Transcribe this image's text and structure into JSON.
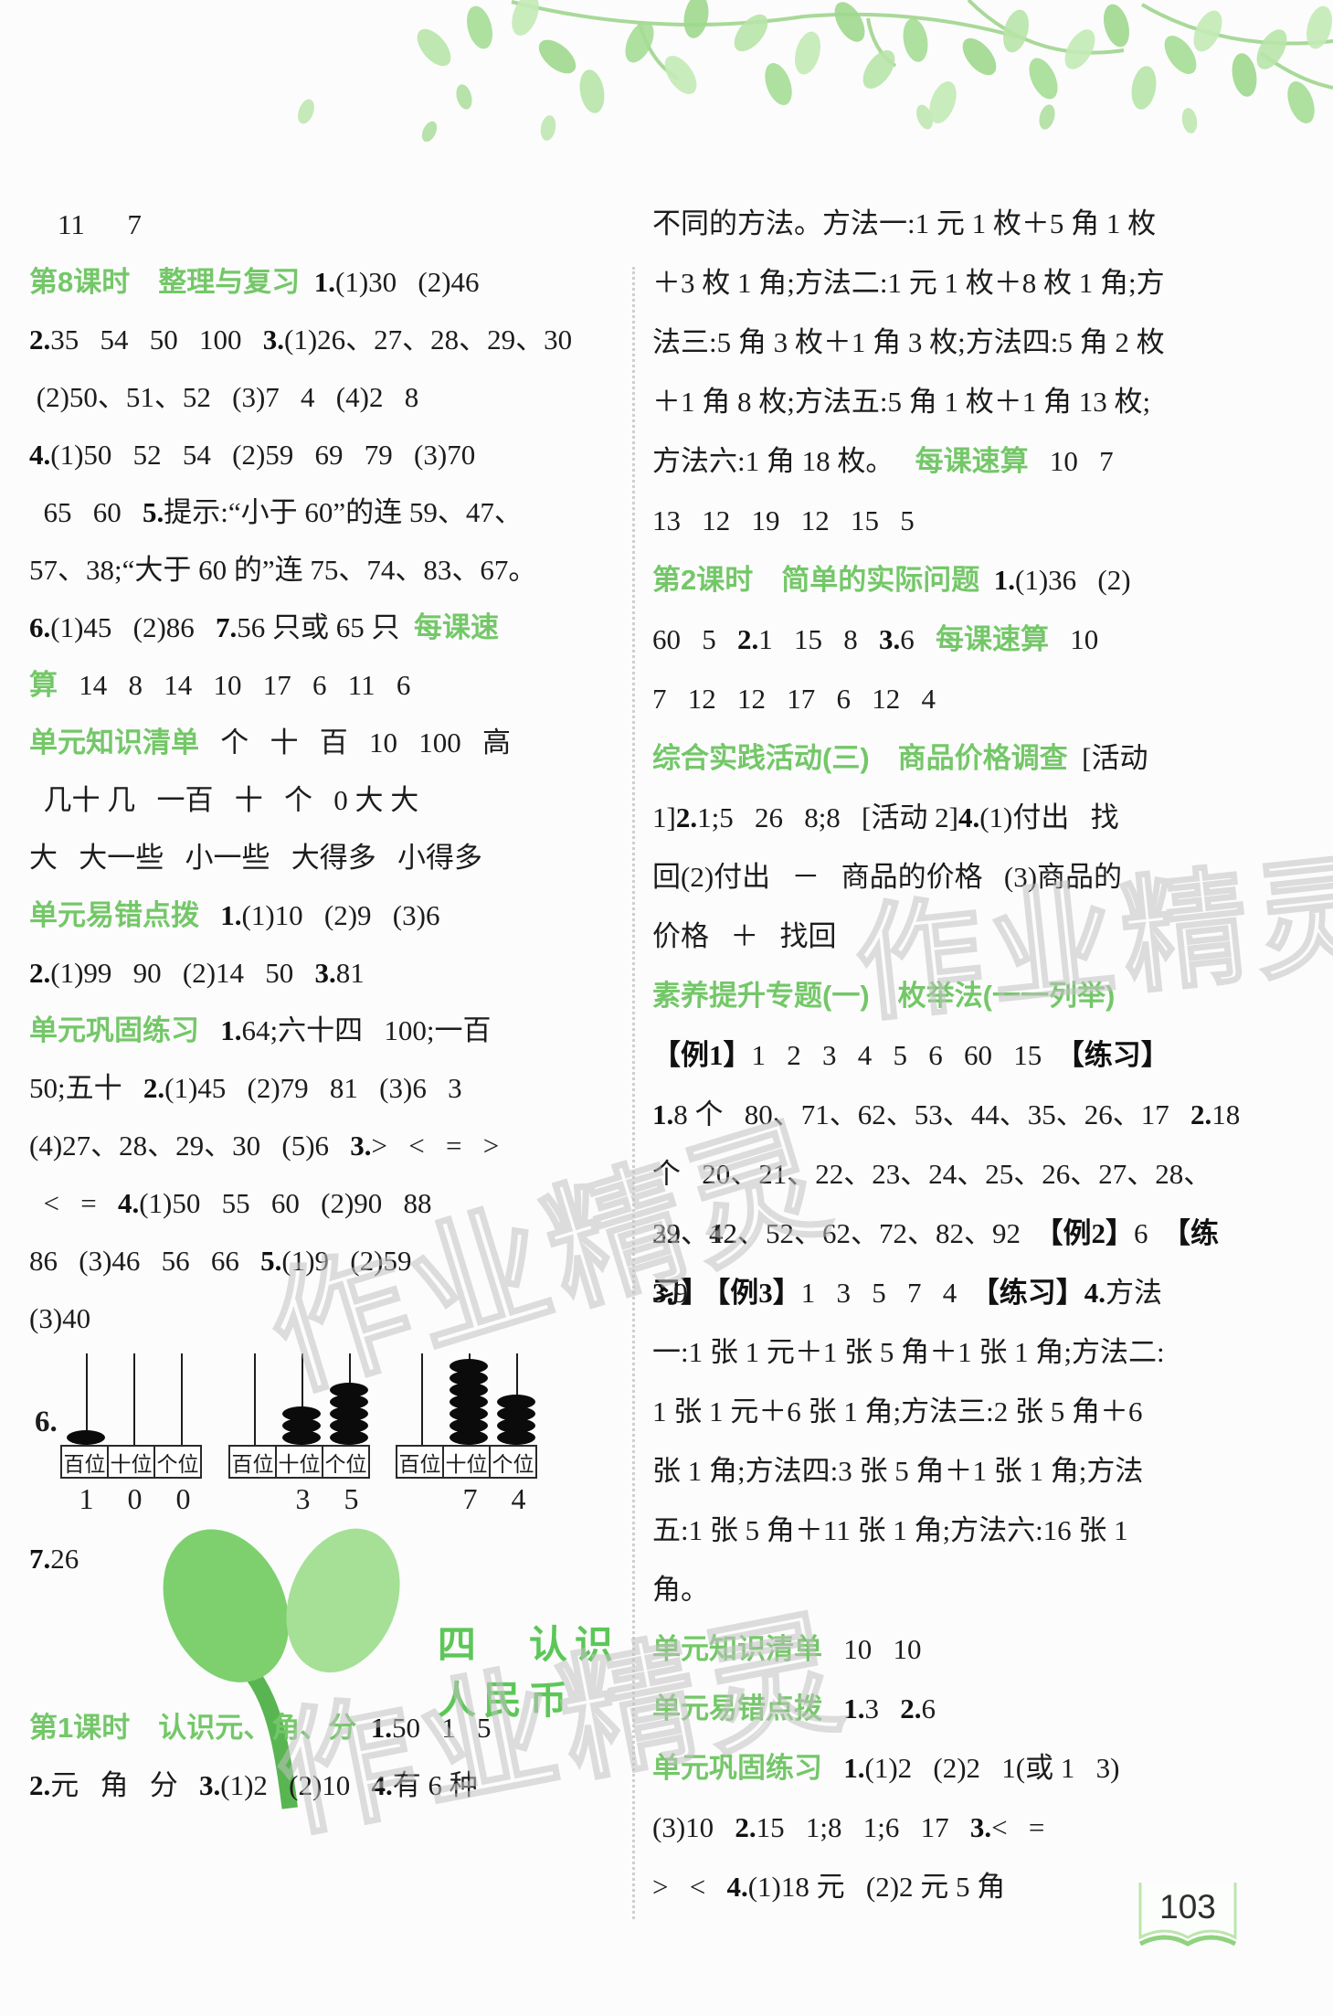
{
  "page": {
    "number": "103",
    "watermark": "作业精灵"
  },
  "left_column": {
    "lines": [
      [
        {
          "s": "n",
          "t": "    11      7"
        }
      ],
      [
        {
          "s": "g",
          "t": "第8课时　整理与复习"
        },
        {
          "s": "n",
          "t": "  "
        },
        {
          "s": "b",
          "t": "1."
        },
        {
          "s": "n",
          "t": "(1)30   (2)46"
        }
      ],
      [
        {
          "s": "b",
          "t": "2."
        },
        {
          "s": "n",
          "t": "35   54   50   100   "
        },
        {
          "s": "b",
          "t": "3."
        },
        {
          "s": "n",
          "t": "(1)26、27、28、29、30"
        }
      ],
      [
        {
          "s": "n",
          "t": " (2)50、51、52   (3)7   4   (4)2   8"
        }
      ],
      [
        {
          "s": "b",
          "t": "4."
        },
        {
          "s": "n",
          "t": "(1)50   52   54   (2)59   69   79   (3)70"
        }
      ],
      [
        {
          "s": "n",
          "t": "  65   60   "
        },
        {
          "s": "b",
          "t": "5."
        },
        {
          "s": "n",
          "t": "提示:“小于 60”的连 59、47、"
        }
      ],
      [
        {
          "s": "n",
          "t": "57、38;“大于 60 的”连 75、74、83、67。"
        }
      ],
      [
        {
          "s": "b",
          "t": "6."
        },
        {
          "s": "n",
          "t": "(1)45   (2)86   "
        },
        {
          "s": "b",
          "t": "7."
        },
        {
          "s": "n",
          "t": "56 只或 65 只  "
        },
        {
          "s": "g",
          "t": "每课速"
        }
      ],
      [
        {
          "s": "g",
          "t": "算"
        },
        {
          "s": "n",
          "t": "   14   8   14   10   17   6   11   6"
        }
      ],
      [
        {
          "s": "g",
          "t": "单元知识清单"
        },
        {
          "s": "n",
          "t": "   个   十   百   10   100   高"
        }
      ],
      [
        {
          "s": "n",
          "t": "  几十 几   一百   十   个   0 大 大"
        }
      ],
      [
        {
          "s": "n",
          "t": "大   大一些   小一些   大得多   小得多"
        }
      ],
      [
        {
          "s": "g",
          "t": "单元易错点拨"
        },
        {
          "s": "n",
          "t": "   "
        },
        {
          "s": "b",
          "t": "1."
        },
        {
          "s": "n",
          "t": "(1)10   (2)9   (3)6"
        }
      ],
      [
        {
          "s": "b",
          "t": "2."
        },
        {
          "s": "n",
          "t": "(1)99   90   (2)14   50   "
        },
        {
          "s": "b",
          "t": "3."
        },
        {
          "s": "n",
          "t": "81"
        }
      ],
      [
        {
          "s": "g",
          "t": "单元巩固练习"
        },
        {
          "s": "n",
          "t": "   "
        },
        {
          "s": "b",
          "t": "1."
        },
        {
          "s": "n",
          "t": "64;六十四   100;一百"
        }
      ],
      [
        {
          "s": "n",
          "t": "50;五十   "
        },
        {
          "s": "b",
          "t": "2."
        },
        {
          "s": "n",
          "t": "(1)45   (2)79   81   (3)6   3"
        }
      ],
      [
        {
          "s": "n",
          "t": "(4)27、28、29、30   (5)6   "
        },
        {
          "s": "b",
          "t": "3."
        },
        {
          "s": "n",
          "t": ">   <   =   >"
        }
      ],
      [
        {
          "s": "n",
          "t": "  <   =   "
        },
        {
          "s": "b",
          "t": "4."
        },
        {
          "s": "n",
          "t": "(1)50   55   60   (2)90   88"
        }
      ],
      [
        {
          "s": "n",
          "t": "86   (3)46   56   66   "
        },
        {
          "s": "b",
          "t": "5."
        },
        {
          "s": "n",
          "t": "(1)9   (2)59"
        }
      ],
      [
        {
          "s": "n",
          "t": "(3)40"
        }
      ]
    ],
    "lines_after_abacus": [
      [
        {
          "s": "b",
          "t": "7."
        },
        {
          "s": "n",
          "t": "26"
        }
      ]
    ],
    "unit_title": "四　认识人民币",
    "lines_bottom": [
      [
        {
          "s": "g",
          "t": "第1课时　认识元、角、分"
        },
        {
          "s": "n",
          "t": "  "
        },
        {
          "s": "b",
          "t": "1."
        },
        {
          "s": "n",
          "t": "50   1   5"
        }
      ],
      [
        {
          "s": "b",
          "t": "2."
        },
        {
          "s": "n",
          "t": "元   角   分   "
        },
        {
          "s": "b",
          "t": "3."
        },
        {
          "s": "n",
          "t": "(1)2   (2)10   "
        },
        {
          "s": "b",
          "t": "4."
        },
        {
          "s": "n",
          "t": "有 6 种"
        }
      ]
    ]
  },
  "abacus": {
    "item_number": "6.",
    "figures": [
      {
        "labels": [
          "百位",
          "十位",
          "个位"
        ],
        "beads": [
          1,
          0,
          0
        ],
        "digits": [
          "1",
          "0",
          "0"
        ]
      },
      {
        "labels": [
          "百位",
          "十位",
          "个位"
        ],
        "beads": [
          0,
          3,
          5
        ],
        "digits": [
          "",
          "3",
          "5"
        ]
      },
      {
        "labels": [
          "百位",
          "十位",
          "个位"
        ],
        "beads": [
          0,
          7,
          4
        ],
        "digits": [
          "",
          "7",
          "4"
        ]
      }
    ]
  },
  "right_column": {
    "lines": [
      [
        {
          "s": "n",
          "t": "不同的方法。方法一:1 元 1 枚＋5 角 1 枚"
        }
      ],
      [
        {
          "s": "n",
          "t": "＋3 枚 1 角;方法二:1 元 1 枚＋8 枚 1 角;方"
        }
      ],
      [
        {
          "s": "n",
          "t": "法三:5 角 3 枚＋1 角 3 枚;方法四:5 角 2 枚"
        }
      ],
      [
        {
          "s": "n",
          "t": "＋1 角 8 枚;方法五:5 角 1 枚＋1 角 13 枚;"
        }
      ],
      [
        {
          "s": "n",
          "t": "方法六:1 角 18 枚。   "
        },
        {
          "s": "g",
          "t": "每课速算"
        },
        {
          "s": "n",
          "t": "   10   7"
        }
      ],
      [
        {
          "s": "n",
          "t": "13   12   19   12   15   5"
        }
      ],
      [
        {
          "s": "g",
          "t": "第2课时　简单的实际问题"
        },
        {
          "s": "n",
          "t": "  "
        },
        {
          "s": "b",
          "t": "1."
        },
        {
          "s": "n",
          "t": "(1)36   (2)"
        }
      ],
      [
        {
          "s": "n",
          "t": "60   5   "
        },
        {
          "s": "b",
          "t": "2."
        },
        {
          "s": "n",
          "t": "1   15   8   "
        },
        {
          "s": "b",
          "t": "3."
        },
        {
          "s": "n",
          "t": "6   "
        },
        {
          "s": "g",
          "t": "每课速算"
        },
        {
          "s": "n",
          "t": "   10"
        }
      ],
      [
        {
          "s": "n",
          "t": "7   12   12   17   6   12   4"
        }
      ],
      [
        {
          "s": "g",
          "t": "综合实践活动(三)　商品价格调查"
        },
        {
          "s": "n",
          "t": "  [活动"
        }
      ],
      [
        {
          "s": "n",
          "t": "1]"
        },
        {
          "s": "b",
          "t": "2."
        },
        {
          "s": "n",
          "t": "1;5   26   8;8   [活动 2]"
        },
        {
          "s": "b",
          "t": "4."
        },
        {
          "s": "n",
          "t": "(1)付出   找"
        }
      ],
      [
        {
          "s": "n",
          "t": "回(2)付出   －   商品的价格   (3)商品的"
        }
      ],
      [
        {
          "s": "n",
          "t": "价格   ＋   找回"
        }
      ],
      [
        {
          "s": "g",
          "t": "素养提升专题(一)　枚举法(一一列举)"
        }
      ],
      [
        {
          "s": "b",
          "t": "【例1】"
        },
        {
          "s": "n",
          "t": "1   2   3   4   5   6   60   15  "
        },
        {
          "s": "b",
          "t": "【练习】"
        }
      ],
      [
        {
          "s": "b",
          "t": "1."
        },
        {
          "s": "n",
          "t": "8 个   80、71、62、53、44、35、26、17   "
        },
        {
          "s": "b",
          "t": "2."
        },
        {
          "s": "n",
          "t": "18"
        }
      ],
      [
        {
          "s": "n",
          "t": "个   20、21、22、23、24、25、26、27、28、29、12、"
        }
      ],
      [
        {
          "s": "n",
          "t": "32、42、52、62、72、82、92  "
        },
        {
          "s": "b",
          "t": "【例2】"
        },
        {
          "s": "n",
          "t": "6  "
        },
        {
          "s": "b",
          "t": "【练习】"
        }
      ],
      [
        {
          "s": "b",
          "t": "3."
        },
        {
          "s": "n",
          "t": "9  "
        },
        {
          "s": "b",
          "t": "【例3】"
        },
        {
          "s": "n",
          "t": "1   3   5   7   4  "
        },
        {
          "s": "b",
          "t": "【练习】4."
        },
        {
          "s": "n",
          "t": "方法"
        }
      ],
      [
        {
          "s": "n",
          "t": "一:1 张 1 元＋1 张 5 角＋1 张 1 角;方法二:"
        }
      ],
      [
        {
          "s": "n",
          "t": "1 张 1 元＋6 张 1 角;方法三:2 张 5 角＋6"
        }
      ],
      [
        {
          "s": "n",
          "t": "张 1 角;方法四:3 张 5 角＋1 张 1 角;方法"
        }
      ],
      [
        {
          "s": "n",
          "t": "五:1 张 5 角＋11 张 1 角;方法六:16 张 1"
        }
      ],
      [
        {
          "s": "n",
          "t": "角。"
        }
      ],
      [
        {
          "s": "g",
          "t": "单元知识清单"
        },
        {
          "s": "n",
          "t": "   10   10"
        }
      ],
      [
        {
          "s": "g",
          "t": "单元易错点拨"
        },
        {
          "s": "n",
          "t": "   "
        },
        {
          "s": "b",
          "t": "1."
        },
        {
          "s": "n",
          "t": "3   "
        },
        {
          "s": "b",
          "t": "2."
        },
        {
          "s": "n",
          "t": "6"
        }
      ],
      [
        {
          "s": "g",
          "t": "单元巩固练习"
        },
        {
          "s": "n",
          "t": "   "
        },
        {
          "s": "b",
          "t": "1."
        },
        {
          "s": "n",
          "t": "(1)2   (2)2   1(或 1   3)"
        }
      ],
      [
        {
          "s": "n",
          "t": "(3)10   "
        },
        {
          "s": "b",
          "t": "2."
        },
        {
          "s": "n",
          "t": "15   1;8   1;6   17   "
        },
        {
          "s": "b",
          "t": "3."
        },
        {
          "s": "n",
          "t": "<   ="
        }
      ],
      [
        {
          "s": "n",
          "t": ">   <   "
        },
        {
          "s": "b",
          "t": "4."
        },
        {
          "s": "n",
          "t": "(1)18 元   (2)2 元 5 角"
        }
      ]
    ]
  }
}
